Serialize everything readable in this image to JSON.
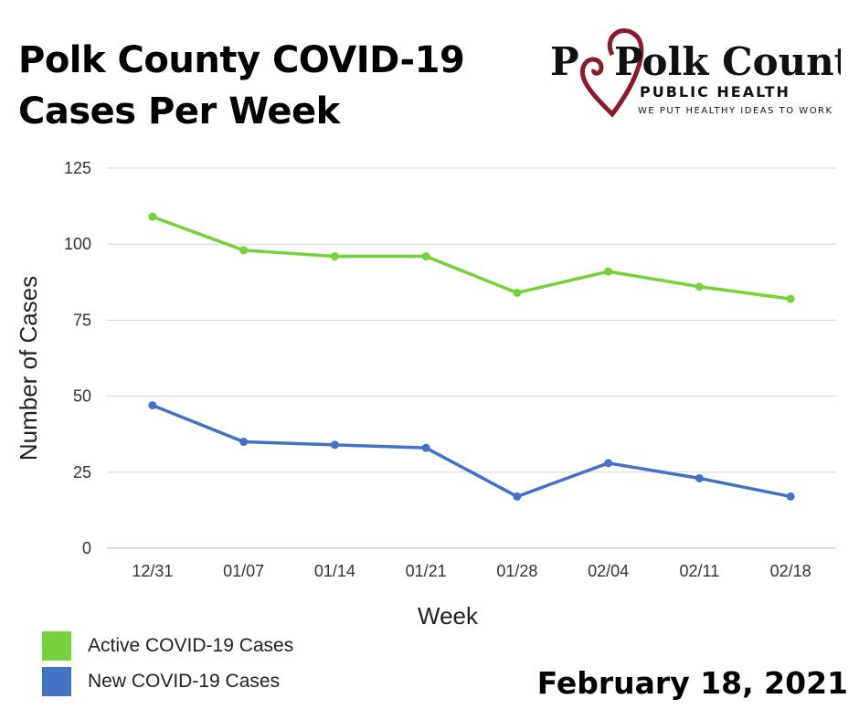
{
  "title_line1": "Polk County COVID-19",
  "title_line2": "Cases Per Week",
  "logo": {
    "name": "Polk County",
    "subtitle": "PUBLIC HEALTH",
    "tagline": "WE PUT HEALTHY IDEAS TO WORK"
  },
  "date": "February 18, 2021",
  "colors": {
    "active": "#76d13a",
    "new": "#4472c4",
    "logo_red": "#8b1a2e"
  },
  "chart_data": {
    "type": "line",
    "xlabel": "Week",
    "ylabel": "Number of Cases",
    "ylim": [
      0,
      125
    ],
    "yticks": [
      0,
      25,
      50,
      75,
      100,
      125
    ],
    "categories": [
      "12/31",
      "01/07",
      "01/14",
      "01/21",
      "01/28",
      "02/04",
      "02/11",
      "02/18"
    ],
    "grid": true,
    "legend_placement": "bottom-left",
    "series": [
      {
        "name": "Active COVID-19 Cases",
        "color": "#76d13a",
        "values": [
          109,
          98,
          96,
          96,
          84,
          91,
          86,
          82
        ]
      },
      {
        "name": "New COVID-19 Cases",
        "color": "#4472c4",
        "values": [
          47,
          35,
          34,
          33,
          17,
          28,
          23,
          17
        ]
      }
    ]
  }
}
